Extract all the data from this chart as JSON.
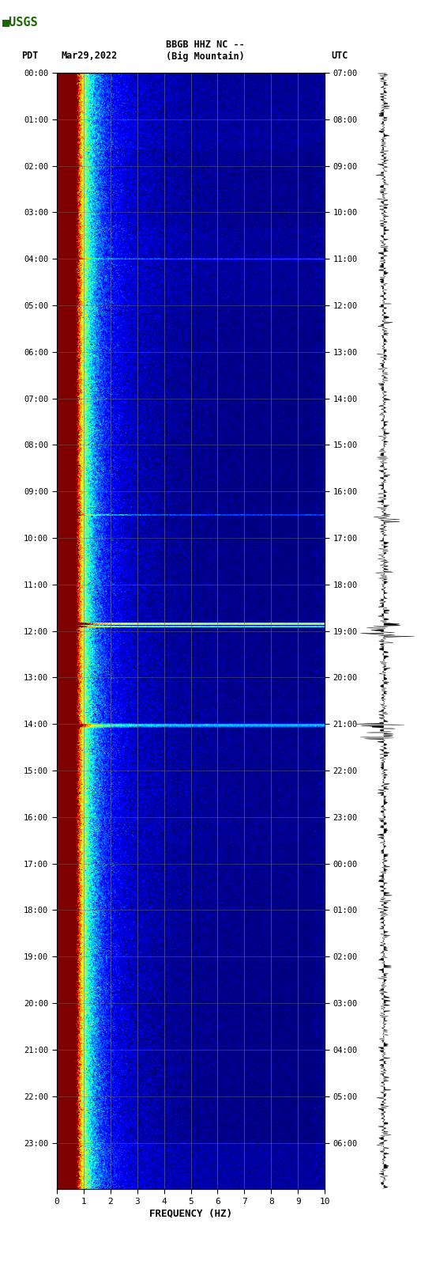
{
  "title_line1": "BBGB HHZ NC --",
  "title_line2": "(Big Mountain)",
  "label_left": "PDT",
  "label_date": "Mar29,2022",
  "label_right": "UTC",
  "freq_min": 0,
  "freq_max": 10,
  "freq_label": "FREQUENCY (HZ)",
  "freq_ticks": [
    0,
    1,
    2,
    3,
    4,
    5,
    6,
    7,
    8,
    9,
    10
  ],
  "time_ticks_left": [
    "00:00",
    "01:00",
    "02:00",
    "03:00",
    "04:00",
    "05:00",
    "06:00",
    "07:00",
    "08:00",
    "09:00",
    "10:00",
    "11:00",
    "12:00",
    "13:00",
    "14:00",
    "15:00",
    "16:00",
    "17:00",
    "18:00",
    "19:00",
    "20:00",
    "21:00",
    "22:00",
    "23:00"
  ],
  "time_ticks_right": [
    "07:00",
    "08:00",
    "09:00",
    "10:00",
    "11:00",
    "12:00",
    "13:00",
    "14:00",
    "15:00",
    "16:00",
    "17:00",
    "18:00",
    "19:00",
    "20:00",
    "21:00",
    "22:00",
    "23:00",
    "00:00",
    "01:00",
    "02:00",
    "03:00",
    "04:00",
    "05:00",
    "06:00"
  ],
  "n_time_steps": 1440,
  "n_freq_steps": 500,
  "bg_color": "#ffffff",
  "usgs_green": "#1a6600",
  "grid_color": "#808080",
  "waveform_color": "#000000",
  "vmin": -2.0,
  "vmax": 4.5
}
